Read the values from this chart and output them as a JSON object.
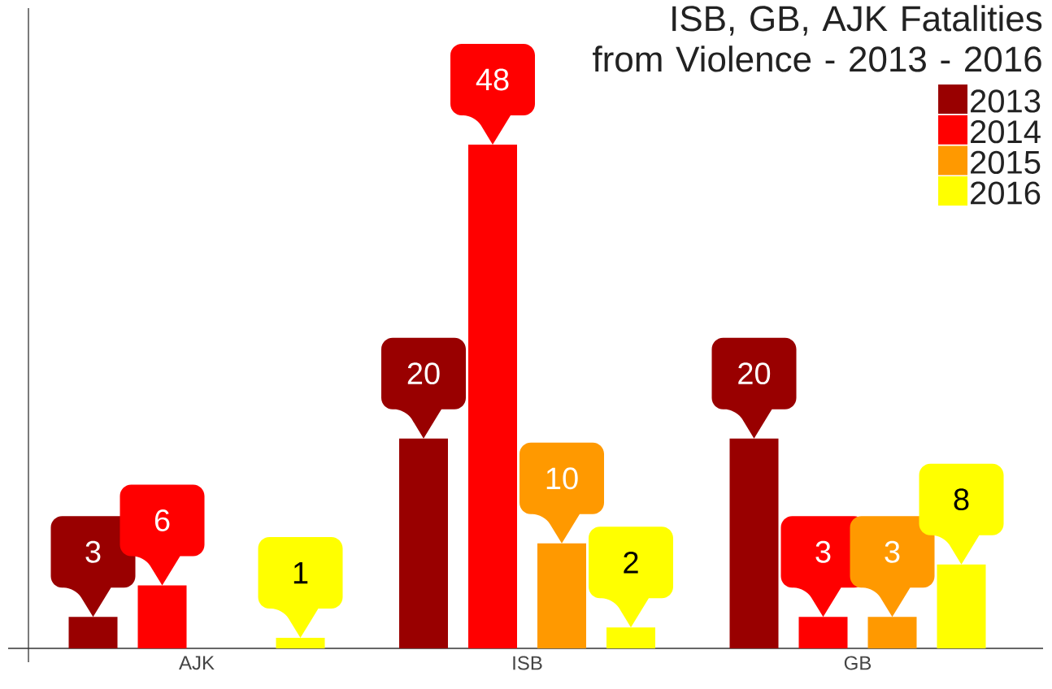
{
  "chart_data": {
    "type": "bar",
    "title": "ISB, GB, AJK Fatalities from Violence - 2013 - 2016",
    "categories": [
      "AJK",
      "ISB",
      "GB"
    ],
    "series": [
      {
        "name": "2013",
        "color": "#990000",
        "values": [
          3,
          20,
          20
        ]
      },
      {
        "name": "2014",
        "color": "#ff0000",
        "values": [
          6,
          48,
          3
        ]
      },
      {
        "name": "2015",
        "color": "#ff9900",
        "values": [
          null,
          10,
          3
        ]
      },
      {
        "name": "2016",
        "color": "#ffff00",
        "values": [
          1,
          2,
          8
        ]
      }
    ],
    "ylim": [
      0,
      61
    ],
    "data_labels": true,
    "legend": "top right",
    "tick_labels": "x"
  }
}
